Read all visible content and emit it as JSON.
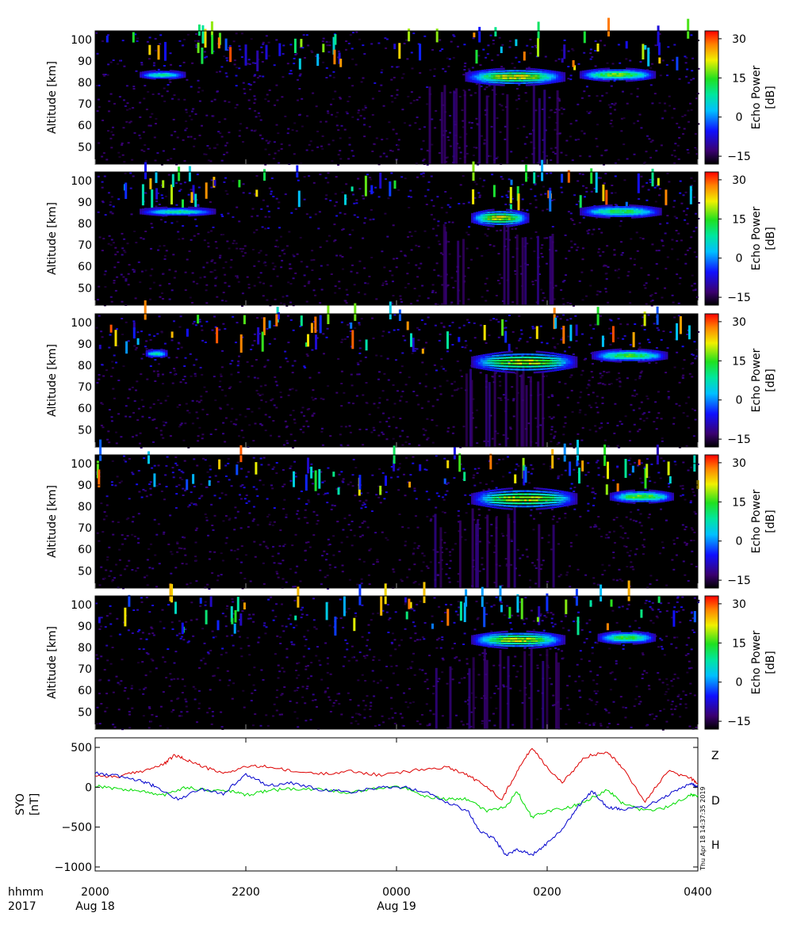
{
  "chart_data": [
    {
      "type": "heatmap",
      "panel": 1,
      "ylabel": "Altitude [km]",
      "ylim": [
        42,
        104
      ],
      "yticks": [
        50,
        60,
        70,
        80,
        90,
        100
      ],
      "colorbar": {
        "label": "Echo Power\n[dB]",
        "range": [
          -18,
          33
        ],
        "ticks": [
          -15,
          0,
          15,
          30
        ]
      },
      "echo_layers": [
        {
          "t0": 0.61,
          "t1": 0.78,
          "alt": 83,
          "thick": 4,
          "peak_dB": 30
        },
        {
          "t0": 0.8,
          "t1": 0.93,
          "alt": 84,
          "thick": 3,
          "peak_dB": 25
        },
        {
          "t0": 0.07,
          "t1": 0.15,
          "alt": 84,
          "thick": 2,
          "peak_dB": 15
        }
      ]
    },
    {
      "type": "heatmap",
      "panel": 2,
      "ylabel": "Altitude [km]",
      "ylim": [
        42,
        104
      ],
      "yticks": [
        50,
        60,
        70,
        80,
        90,
        100
      ],
      "colorbar": {
        "label": "Echo Power\n[dB]",
        "range": [
          -18,
          33
        ],
        "ticks": [
          -15,
          0,
          15,
          30
        ]
      },
      "echo_layers": [
        {
          "t0": 0.62,
          "t1": 0.72,
          "alt": 83,
          "thick": 4,
          "peak_dB": 30
        },
        {
          "t0": 0.8,
          "t1": 0.94,
          "alt": 86,
          "thick": 3,
          "peak_dB": 20
        },
        {
          "t0": 0.07,
          "t1": 0.2,
          "alt": 86,
          "thick": 2,
          "peak_dB": 15
        }
      ]
    },
    {
      "type": "heatmap",
      "panel": 3,
      "ylabel": "Altitude [km]",
      "ylim": [
        42,
        104
      ],
      "yticks": [
        50,
        60,
        70,
        80,
        90,
        100
      ],
      "colorbar": {
        "label": "Echo Power\n[dB]",
        "range": [
          -18,
          33
        ],
        "ticks": [
          -15,
          0,
          15,
          30
        ]
      },
      "echo_layers": [
        {
          "t0": 0.62,
          "t1": 0.8,
          "alt": 82,
          "thick": 5,
          "peak_dB": 30
        },
        {
          "t0": 0.82,
          "t1": 0.95,
          "alt": 85,
          "thick": 3,
          "peak_dB": 22
        },
        {
          "t0": 0.08,
          "t1": 0.12,
          "alt": 86,
          "thick": 2,
          "peak_dB": 15
        }
      ]
    },
    {
      "type": "heatmap",
      "panel": 4,
      "ylabel": "Altitude [km]",
      "ylim": [
        42,
        104
      ],
      "yticks": [
        50,
        60,
        70,
        80,
        90,
        100
      ],
      "colorbar": {
        "label": "Echo Power\n[dB]",
        "range": [
          -18,
          33
        ],
        "ticks": [
          -15,
          0,
          15,
          30
        ]
      },
      "echo_layers": [
        {
          "t0": 0.62,
          "t1": 0.8,
          "alt": 84,
          "thick": 5,
          "peak_dB": 30
        },
        {
          "t0": 0.85,
          "t1": 0.96,
          "alt": 85,
          "thick": 3,
          "peak_dB": 25
        }
      ]
    },
    {
      "type": "heatmap",
      "panel": 5,
      "ylabel": "Altitude [km]",
      "ylim": [
        42,
        104
      ],
      "yticks": [
        50,
        60,
        70,
        80,
        90,
        100
      ],
      "colorbar": {
        "label": "Echo Power\n[dB]",
        "range": [
          -18,
          33
        ],
        "ticks": [
          -15,
          0,
          15,
          30
        ]
      },
      "echo_layers": [
        {
          "t0": 0.62,
          "t1": 0.78,
          "alt": 84,
          "thick": 4,
          "peak_dB": 30
        },
        {
          "t0": 0.83,
          "t1": 0.93,
          "alt": 85,
          "thick": 3,
          "peak_dB": 22
        }
      ]
    },
    {
      "type": "line",
      "panel": 6,
      "ylabel": "SYO\n[nT]",
      "ylim": [
        -1050,
        620
      ],
      "yticks": [
        -1000,
        -500,
        0,
        500
      ],
      "series": [
        {
          "name": "Z",
          "color": "#dd0000",
          "x": [
            20.0,
            20.3,
            20.6,
            20.9,
            21.05,
            21.2,
            21.4,
            21.7,
            22.0,
            22.3,
            22.6,
            23.0,
            23.4,
            23.8,
            24.3,
            24.7,
            24.95,
            25.2,
            25.4,
            25.6,
            25.8,
            26.0,
            26.2,
            26.5,
            26.8,
            27.0,
            27.3,
            27.6,
            27.9,
            28.0
          ],
          "y": [
            150,
            130,
            200,
            280,
            400,
            350,
            270,
            170,
            260,
            260,
            200,
            170,
            200,
            150,
            220,
            250,
            150,
            0,
            -150,
            200,
            500,
            250,
            50,
            380,
            450,
            250,
            -180,
            200,
            120,
            50
          ]
        },
        {
          "name": "D",
          "color": "#00dd00",
          "x": [
            20.0,
            20.3,
            20.6,
            20.9,
            21.2,
            21.5,
            21.8,
            22.0,
            22.3,
            22.6,
            23.0,
            23.4,
            23.8,
            24.1,
            24.4,
            24.7,
            24.95,
            25.2,
            25.45,
            25.6,
            25.8,
            26.0,
            26.3,
            26.5,
            26.8,
            27.0,
            27.3,
            27.6,
            27.9,
            28.0
          ],
          "y": [
            20,
            -20,
            -50,
            -100,
            0,
            -40,
            -50,
            -100,
            -40,
            -20,
            -30,
            -70,
            0,
            0,
            -120,
            -150,
            -150,
            -300,
            -250,
            -50,
            -380,
            -300,
            -250,
            -180,
            -30,
            -200,
            -300,
            -250,
            -100,
            -100
          ]
        },
        {
          "name": "H",
          "color": "#0000cc",
          "x": [
            20.0,
            20.3,
            20.6,
            20.8,
            21.1,
            21.4,
            21.7,
            22.0,
            22.3,
            22.6,
            23.0,
            23.4,
            23.8,
            24.1,
            24.4,
            24.7,
            24.95,
            25.1,
            25.3,
            25.45,
            25.6,
            25.8,
            26.0,
            26.2,
            26.4,
            26.6,
            26.8,
            27.0,
            27.3,
            27.6,
            27.9,
            28.0
          ],
          "y": [
            180,
            140,
            80,
            10,
            -150,
            -20,
            -80,
            160,
            20,
            50,
            -30,
            -60,
            0,
            0,
            -60,
            -200,
            -300,
            -550,
            -650,
            -850,
            -780,
            -850,
            -700,
            -520,
            -250,
            -50,
            -250,
            -280,
            -250,
            -100,
            50,
            0
          ]
        }
      ]
    }
  ],
  "xaxis": {
    "header": "hhmm",
    "year": "2017",
    "range": [
      20,
      28
    ],
    "ticks": [
      {
        "t": 20,
        "label": "2000",
        "date": "Aug 18"
      },
      {
        "t": 22,
        "label": "2200",
        "date": ""
      },
      {
        "t": 24,
        "label": "0000",
        "date": "Aug 19"
      },
      {
        "t": 26,
        "label": "0200",
        "date": ""
      },
      {
        "t": 28,
        "label": "0400",
        "date": ""
      }
    ]
  },
  "timestamp": "Thu Apr 18 14:37:35 2019"
}
